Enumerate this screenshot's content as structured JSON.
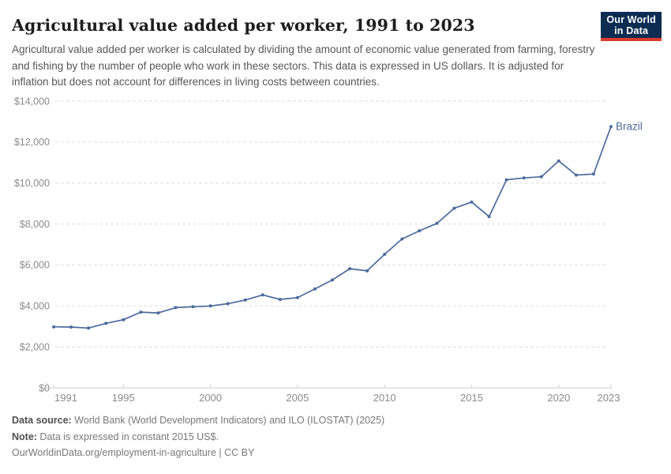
{
  "header": {
    "title": "Agricultural value added per worker, 1991 to 2023",
    "subtitle": "Agricultural value added per worker is calculated by dividing the amount of economic value generated from farming, forestry and fishing by the number of people who work in these sectors. This data is expressed in US dollars. It is adjusted for inflation but does not account for differences in living costs between countries.",
    "logo": {
      "line1": "Our World",
      "line2": "in Data",
      "bg_color": "#0c2c52",
      "accent_color": "#dc3b2b"
    }
  },
  "chart_data": {
    "type": "line",
    "title": "Agricultural value added per worker, 1991 to 2023",
    "xlabel": "",
    "ylabel": "",
    "xlim": [
      1991,
      2023
    ],
    "ylim": [
      0,
      14000
    ],
    "grid": "horizontal-dashed",
    "legend_position": "end-of-line-label",
    "x_ticks": [
      1991,
      1995,
      2000,
      2005,
      2010,
      2015,
      2020,
      2023
    ],
    "y_ticks": [
      0,
      2000,
      4000,
      6000,
      8000,
      10000,
      12000,
      14000
    ],
    "y_tick_labels": [
      "$0",
      "$2,000",
      "$4,000",
      "$6,000",
      "$8,000",
      "$10,000",
      "$12,000",
      "$14,000"
    ],
    "series": [
      {
        "name": "Brazil",
        "color": "#4c6a9c",
        "x": [
          1991,
          1992,
          1993,
          1994,
          1995,
          1996,
          1997,
          1998,
          1999,
          2000,
          2001,
          2002,
          2003,
          2004,
          2005,
          2006,
          2007,
          2008,
          2009,
          2010,
          2011,
          2012,
          2013,
          2014,
          2015,
          2016,
          2017,
          2018,
          2019,
          2020,
          2021,
          2022,
          2023
        ],
        "values": [
          2980,
          2970,
          2920,
          3150,
          3330,
          3700,
          3660,
          3920,
          3960,
          4000,
          4110,
          4290,
          4540,
          4320,
          4410,
          4830,
          5270,
          5820,
          5710,
          6520,
          7270,
          7670,
          8030,
          8770,
          9070,
          8360,
          10160,
          10250,
          10310,
          11080,
          10390,
          10440,
          12760
        ]
      }
    ]
  },
  "footer": {
    "source_label": "Data source:",
    "source_text": " World Bank (World Development Indicators) and ILO (ILOSTAT) (2025)",
    "note_label": "Note:",
    "note_text": " Data is expressed in constant 2015 US$.",
    "url": "OurWorldinData.org/employment-in-agriculture",
    "separator": " | ",
    "license": "CC BY"
  }
}
